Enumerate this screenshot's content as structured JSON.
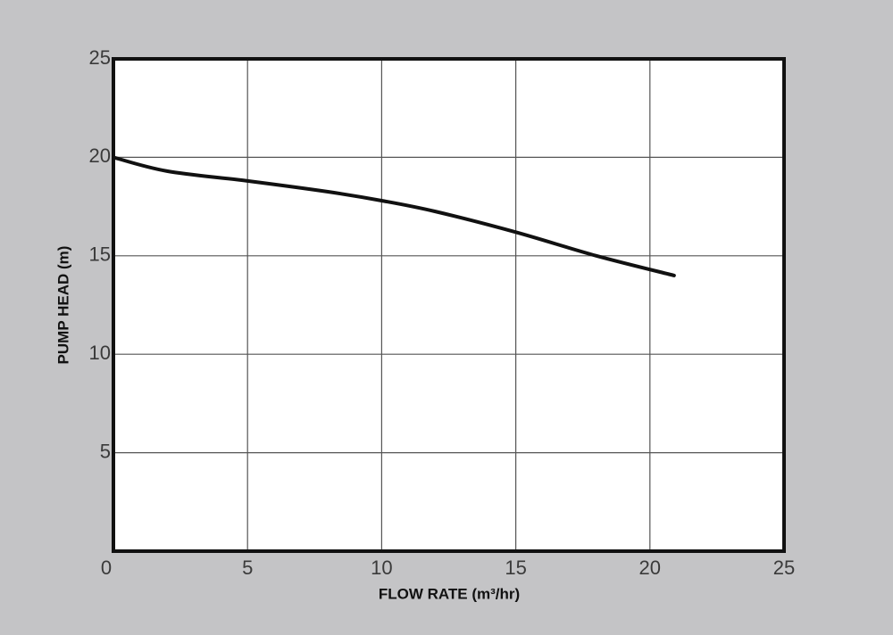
{
  "chart_data": {
    "type": "line",
    "x_label": "FLOW RATE (m³/hr)",
    "y_label": "PUMP HEAD (m)",
    "x": [
      0,
      2,
      5,
      8,
      10,
      12,
      15,
      18,
      20.9
    ],
    "values": [
      20,
      19.3,
      18.8,
      18.25,
      17.8,
      17.25,
      16.2,
      15.0,
      14.0
    ],
    "color": "#111111",
    "xlim": [
      0,
      25
    ],
    "xticks": [
      0,
      5,
      10,
      15,
      20,
      25
    ],
    "ylim": [
      0,
      25
    ],
    "yticks": [
      5,
      10,
      15,
      20,
      25
    ],
    "grid": true
  }
}
